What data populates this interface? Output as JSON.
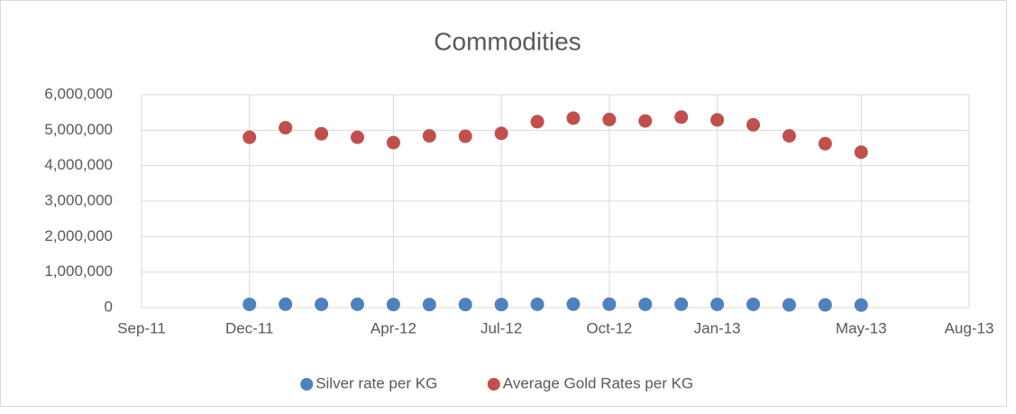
{
  "chart_data": {
    "type": "scatter",
    "title": "Commodities",
    "x": [
      "2011-12",
      "2012-01",
      "2012-02",
      "2012-03",
      "2012-04",
      "2012-05",
      "2012-06",
      "2012-07",
      "2012-08",
      "2012-09",
      "2012-10",
      "2012-11",
      "2012-12",
      "2013-01",
      "2013-02",
      "2013-03",
      "2013-04",
      "2013-05"
    ],
    "series": [
      {
        "name": "Silver rate per KG",
        "color": "#4f81bd",
        "values": [
          90000,
          95000,
          90000,
          92000,
          85000,
          85000,
          85000,
          85000,
          92000,
          95000,
          95000,
          90000,
          95000,
          90000,
          90000,
          75000,
          75000,
          70000
        ]
      },
      {
        "name": "Average Gold Rates per KG",
        "color": "#c0504d",
        "values": [
          4800000,
          5070000,
          4900000,
          4800000,
          4650000,
          4840000,
          4830000,
          4910000,
          5240000,
          5340000,
          5300000,
          5260000,
          5370000,
          5290000,
          5150000,
          4840000,
          4620000,
          4380000
        ]
      }
    ],
    "xlim": [
      "2011-09",
      "2013-08"
    ],
    "xticks": [
      {
        "value": "2011-09",
        "label": "Sep-11"
      },
      {
        "value": "2011-12",
        "label": "Dec-11"
      },
      {
        "value": "2012-04",
        "label": "Apr-12"
      },
      {
        "value": "2012-07",
        "label": "Jul-12"
      },
      {
        "value": "2012-10",
        "label": "Oct-12"
      },
      {
        "value": "2013-01",
        "label": "Jan-13"
      },
      {
        "value": "2013-05",
        "label": "May-13"
      },
      {
        "value": "2013-08",
        "label": "Aug-13"
      }
    ],
    "ylim": [
      0,
      6000000
    ],
    "yticks": [
      0,
      {
        "value": 1000000,
        "label": "1,000,000"
      },
      {
        "value": 2000000,
        "label": "2,000,000"
      },
      {
        "value": 3000000,
        "label": "3,000,000"
      },
      {
        "value": 4000000,
        "label": "4,000,000"
      },
      {
        "value": 5000000,
        "label": "5,000,000"
      },
      {
        "value": 6000000,
        "label": "6,000,000"
      }
    ],
    "grid": true,
    "legend": "bottom"
  }
}
